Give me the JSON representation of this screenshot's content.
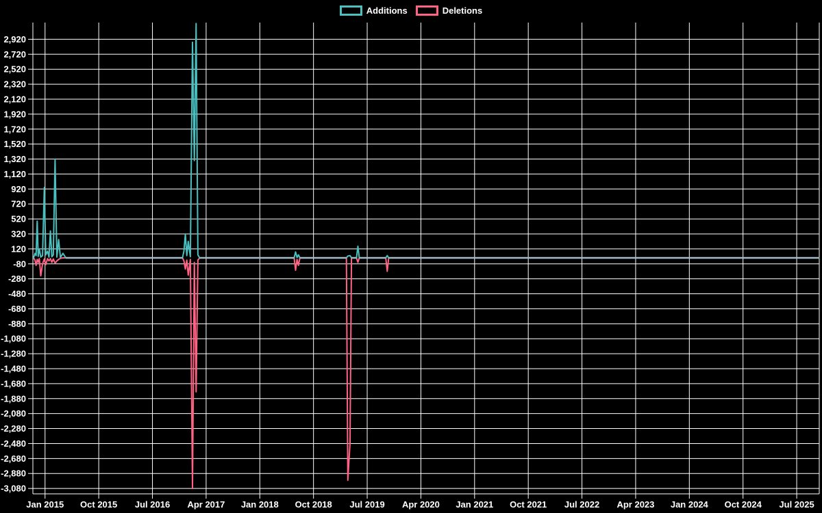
{
  "legend": {
    "items": [
      {
        "label": "Additions",
        "color": "#4bc0c0"
      },
      {
        "label": "Deletions",
        "color": "#ff6384"
      }
    ]
  },
  "chart_data": {
    "type": "line",
    "background": "#000000",
    "grid_color": "#ffffff",
    "text_color": "#ffffff",
    "baseline_overlap_color": "#a4bac6",
    "legend_position": "top-center",
    "grid": "on",
    "x_axis": {
      "min": 2014.83,
      "max": 2025.815,
      "ticks": [
        {
          "t": 2015.0,
          "label": "Jan 2015"
        },
        {
          "t": 2015.75,
          "label": "Oct 2015"
        },
        {
          "t": 2016.5,
          "label": "Jul 2016"
        },
        {
          "t": 2017.25,
          "label": "Apr 2017"
        },
        {
          "t": 2018.0,
          "label": "Jan 2018"
        },
        {
          "t": 2018.75,
          "label": "Oct 2018"
        },
        {
          "t": 2019.5,
          "label": "Jul 2019"
        },
        {
          "t": 2020.25,
          "label": "Apr 2020"
        },
        {
          "t": 2021.0,
          "label": "Jan 2021"
        },
        {
          "t": 2021.75,
          "label": "Oct 2021"
        },
        {
          "t": 2022.5,
          "label": "Jul 2022"
        },
        {
          "t": 2023.25,
          "label": "Apr 2023"
        },
        {
          "t": 2024.0,
          "label": "Jan 2024"
        },
        {
          "t": 2024.75,
          "label": "Oct 2024"
        },
        {
          "t": 2025.5,
          "label": "Jul 2025"
        }
      ]
    },
    "y_axis": {
      "tick_max": 2920,
      "tick_min": -3080,
      "tick_step": 200,
      "max": 3143,
      "min": -3152,
      "tick_format": "comma"
    },
    "series": [
      {
        "name": "Additions",
        "color": "#4bc0c0",
        "points": [
          [
            2014.84,
            0
          ],
          [
            2014.86,
            60
          ],
          [
            2014.875,
            30
          ],
          [
            2014.89,
            490
          ],
          [
            2014.905,
            20
          ],
          [
            2014.92,
            120
          ],
          [
            2014.94,
            10
          ],
          [
            2014.965,
            30
          ],
          [
            2014.99,
            940
          ],
          [
            2015.01,
            40
          ],
          [
            2015.035,
            90
          ],
          [
            2015.055,
            10
          ],
          [
            2015.075,
            360
          ],
          [
            2015.095,
            15
          ],
          [
            2015.115,
            40
          ],
          [
            2015.14,
            1320
          ],
          [
            2015.165,
            10
          ],
          [
            2015.19,
            245
          ],
          [
            2015.215,
            5
          ],
          [
            2015.25,
            60
          ],
          [
            2015.29,
            0
          ],
          [
            2016.92,
            0
          ],
          [
            2016.94,
            90
          ],
          [
            2016.96,
            320
          ],
          [
            2016.98,
            30
          ],
          [
            2017.0,
            220
          ],
          [
            2017.03,
            15
          ],
          [
            2017.06,
            2880
          ],
          [
            2017.085,
            1300
          ],
          [
            2017.11,
            3130
          ],
          [
            2017.135,
            40
          ],
          [
            2017.16,
            0
          ],
          [
            2018.48,
            0
          ],
          [
            2018.5,
            80
          ],
          [
            2018.52,
            5
          ],
          [
            2018.54,
            40
          ],
          [
            2018.56,
            0
          ],
          [
            2019.21,
            0
          ],
          [
            2019.23,
            25
          ],
          [
            2019.26,
            30
          ],
          [
            2019.28,
            0
          ],
          [
            2019.35,
            0
          ],
          [
            2019.37,
            155
          ],
          [
            2019.39,
            0
          ],
          [
            2019.76,
            0
          ],
          [
            2019.78,
            30
          ],
          [
            2019.8,
            0
          ],
          [
            2025.81,
            0
          ]
        ]
      },
      {
        "name": "Deletions",
        "color": "#ff6384",
        "points": [
          [
            2014.84,
            0
          ],
          [
            2014.86,
            -30
          ],
          [
            2014.875,
            -100
          ],
          [
            2014.89,
            -20
          ],
          [
            2014.905,
            -60
          ],
          [
            2014.92,
            -10
          ],
          [
            2014.94,
            -240
          ],
          [
            2014.965,
            -80
          ],
          [
            2014.99,
            -15
          ],
          [
            2015.01,
            -90
          ],
          [
            2015.035,
            -10
          ],
          [
            2015.055,
            -40
          ],
          [
            2015.075,
            -10
          ],
          [
            2015.095,
            -60
          ],
          [
            2015.115,
            -15
          ],
          [
            2015.14,
            -70
          ],
          [
            2015.165,
            -40
          ],
          [
            2015.19,
            -20
          ],
          [
            2015.215,
            -5
          ],
          [
            2015.25,
            0
          ],
          [
            2016.92,
            0
          ],
          [
            2016.94,
            -40
          ],
          [
            2016.96,
            -150
          ],
          [
            2016.98,
            -30
          ],
          [
            2017.0,
            -230
          ],
          [
            2017.03,
            -20
          ],
          [
            2017.06,
            -3080
          ],
          [
            2017.085,
            -60
          ],
          [
            2017.11,
            -1790
          ],
          [
            2017.135,
            -30
          ],
          [
            2017.16,
            0
          ],
          [
            2018.48,
            0
          ],
          [
            2018.5,
            -165
          ],
          [
            2018.52,
            -20
          ],
          [
            2018.54,
            -100
          ],
          [
            2018.56,
            0
          ],
          [
            2019.21,
            0
          ],
          [
            2019.23,
            -2970
          ],
          [
            2019.26,
            -2470
          ],
          [
            2019.28,
            0
          ],
          [
            2019.35,
            0
          ],
          [
            2019.37,
            -60
          ],
          [
            2019.39,
            0
          ],
          [
            2019.76,
            0
          ],
          [
            2019.78,
            -180
          ],
          [
            2019.8,
            0
          ],
          [
            2025.81,
            0
          ]
        ]
      }
    ]
  }
}
